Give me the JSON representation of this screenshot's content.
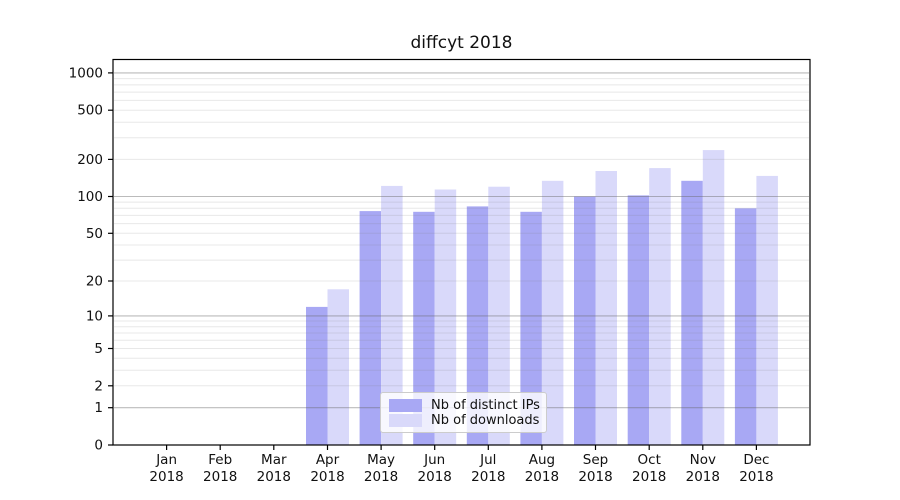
{
  "title": "diffcyt 2018",
  "legend": {
    "items": [
      {
        "label": "Nb of distinct IPs",
        "color": "#a8a8f4"
      },
      {
        "label": "Nb of downloads",
        "color": "#d9d9fa"
      }
    ]
  },
  "chart_data": {
    "type": "bar",
    "title": "diffcyt 2018",
    "categories": [
      "Jan 2018",
      "Feb 2018",
      "Mar 2018",
      "Apr 2018",
      "May 2018",
      "Jun 2018",
      "Jul 2018",
      "Aug 2018",
      "Sep 2018",
      "Oct 2018",
      "Nov 2018",
      "Dec 2018"
    ],
    "months": [
      "Jan",
      "Feb",
      "Mar",
      "Apr",
      "May",
      "Jun",
      "Jul",
      "Aug",
      "Sep",
      "Oct",
      "Nov",
      "Dec"
    ],
    "year": "2018",
    "series": [
      {
        "name": "Nb of distinct IPs",
        "color": "#a8a8f4",
        "values": [
          0,
          0,
          0,
          12,
          76,
          75,
          83,
          75,
          100,
          102,
          134,
          80
        ]
      },
      {
        "name": "Nb of downloads",
        "color": "#d9d9fa",
        "values": [
          0,
          0,
          0,
          17,
          122,
          114,
          120,
          134,
          161,
          170,
          238,
          147
        ]
      }
    ],
    "xlabel": "",
    "ylabel": "",
    "y_scale": "log10(1+x)",
    "y_ticks": [
      0,
      1,
      2,
      5,
      10,
      20,
      50,
      100,
      200,
      500,
      1000
    ],
    "ylim": [
      0,
      1270
    ],
    "grid": "both",
    "legend_position": "lower center-left inside plot",
    "colors": {
      "major_grid": "rgba(105,105,105,0.45)",
      "minor_grid": "rgba(130,130,130,0.18)",
      "axis": "#000000",
      "text": "#111111"
    }
  }
}
